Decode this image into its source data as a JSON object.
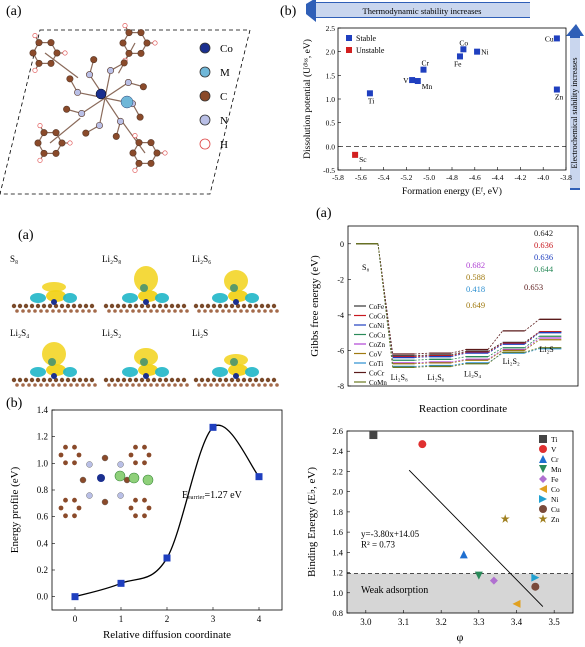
{
  "panel_labels": {
    "tl": "(a)",
    "tr": "(b)",
    "ml": "(a)",
    "mr": "(a)",
    "bl": "(b)"
  },
  "structure": {
    "legend": [
      {
        "label": "Co",
        "color": "#1a2f8f"
      },
      {
        "label": "M",
        "color": "#6fb7d8"
      },
      {
        "label": "C",
        "color": "#8a4a2a"
      },
      {
        "label": "N",
        "color": "#b9bfe6"
      },
      {
        "label": "H",
        "color": "#ffffff"
      }
    ]
  },
  "charge_density": {
    "labels": [
      "S₈",
      "Li₂S₈",
      "Li₂S₆",
      "Li₂S₄",
      "Li₂S₂",
      "Li₂S"
    ]
  },
  "chart_data": [
    {
      "id": "stability",
      "type": "scatter",
      "xlabel": "Formation energy (Eᶠ, eV)",
      "ylabel": "Dissolution potential (Uᵈⁱˢˢ, eV)",
      "xlim": [
        -5.8,
        -3.8
      ],
      "ylim": [
        -0.5,
        2.5
      ],
      "xticks": [
        "-5.8",
        "-5.6",
        "-5.4",
        "-5.2",
        "-5.0",
        "-4.8",
        "-4.6",
        "-4.4",
        "-4.2",
        "-4.0",
        "-3.8"
      ],
      "yticks": [
        "-0.5",
        "0.0",
        "0.5",
        "1.0",
        "1.5",
        "2.0",
        "2.5"
      ],
      "banner_h": "Thermodynamic stability increases",
      "banner_v": "Electrochemical stability increases",
      "legend": [
        {
          "name": "Stable",
          "color": "#1f3fbf"
        },
        {
          "name": "Unstable",
          "color": "#d21f1f"
        }
      ],
      "points": [
        {
          "label": "Ti",
          "x": -5.52,
          "y": 1.12,
          "cls": "Stable"
        },
        {
          "label": "V",
          "x": -5.15,
          "y": 1.4,
          "cls": "Stable"
        },
        {
          "label": "Mn",
          "x": -5.1,
          "y": 1.38,
          "cls": "Stable"
        },
        {
          "label": "Cr",
          "x": -5.05,
          "y": 1.62,
          "cls": "Stable"
        },
        {
          "label": "Fe",
          "x": -4.73,
          "y": 1.9,
          "cls": "Stable"
        },
        {
          "label": "Co",
          "x": -4.7,
          "y": 2.05,
          "cls": "Stable"
        },
        {
          "label": "Ni",
          "x": -4.58,
          "y": 2.0,
          "cls": "Stable"
        },
        {
          "label": "Cu",
          "x": -3.88,
          "y": 2.28,
          "cls": "Stable"
        },
        {
          "label": "Zn",
          "x": -3.88,
          "y": 1.2,
          "cls": "Stable"
        },
        {
          "label": "Sc",
          "x": -5.65,
          "y": -0.18,
          "cls": "Unstable"
        }
      ]
    },
    {
      "id": "gibbs",
      "type": "line",
      "xlabel": "Reaction coordinate",
      "ylabel": "Gibbs free energy (eV)",
      "ylim": [
        -8,
        1
      ],
      "yticks": [
        "0",
        "-2",
        "-4",
        "-6",
        "-8"
      ],
      "steps": [
        "S₈",
        "Li₂S₈",
        "Li₂S₆",
        "Li₂S₄",
        "Li₂S₂",
        "Li₂S"
      ],
      "series": [
        {
          "name": "CoFe",
          "color": "#333333",
          "values": [
            0,
            -6.3,
            -6.25,
            -6.05,
            -5.55,
            -4.95
          ]
        },
        {
          "name": "CoCo",
          "color": "#c8191f",
          "values": [
            0,
            -6.35,
            -6.3,
            -6.1,
            -5.6,
            -4.95
          ]
        },
        {
          "name": "CoNi",
          "color": "#1f3fbf",
          "values": [
            0,
            -6.4,
            -6.35,
            -6.15,
            -5.65,
            -5.0
          ]
        },
        {
          "name": "CoCu",
          "color": "#2a8a5a",
          "values": [
            0,
            -6.55,
            -6.5,
            -6.35,
            -5.85,
            -5.2
          ]
        },
        {
          "name": "CoZn",
          "color": "#b044d4",
          "values": [
            0,
            -6.7,
            -6.65,
            -6.5,
            -5.95,
            -5.3
          ]
        },
        {
          "name": "CoV",
          "color": "#a07a10",
          "values": [
            0,
            -6.75,
            -6.7,
            -6.55,
            -6.0,
            -5.4
          ]
        },
        {
          "name": "CoTi",
          "color": "#2b8fd0",
          "values": [
            0,
            -6.9,
            -6.85,
            -6.7,
            -6.15,
            -5.9
          ]
        },
        {
          "name": "CoCr",
          "color": "#5a1a1a",
          "values": [
            0,
            -6.2,
            -6.15,
            -5.95,
            -4.9,
            -4.25
          ]
        },
        {
          "name": "CoMn",
          "color": "#6a7a20",
          "values": [
            0,
            -6.95,
            -6.9,
            -6.75,
            -6.1,
            -5.85
          ]
        }
      ],
      "annotations": [
        {
          "text": "0.642",
          "color": "#222222"
        },
        {
          "text": "0.636",
          "color": "#c8191f"
        },
        {
          "text": "0.636",
          "color": "#1f3fbf"
        },
        {
          "text": "0.644",
          "color": "#2a8a5a"
        },
        {
          "text": "0.682",
          "color": "#b044d4"
        },
        {
          "text": "0.588",
          "color": "#a07a10"
        },
        {
          "text": "0.418",
          "color": "#2b8fd0"
        },
        {
          "text": "0.649",
          "color": "#a07a10"
        },
        {
          "text": "0.653",
          "color": "#5a1a1a"
        }
      ]
    },
    {
      "id": "diffusion",
      "type": "line",
      "xlabel": "Relative diffusion coordinate",
      "ylabel": "Energy profile (eV)",
      "xlim": [
        -0.5,
        4.5
      ],
      "ylim": [
        -0.1,
        1.4
      ],
      "xticks": [
        "0",
        "1",
        "2",
        "3",
        "4"
      ],
      "yticks": [
        "0.0",
        "0.2",
        "0.4",
        "0.6",
        "0.8",
        "1.0",
        "1.2",
        "1.4"
      ],
      "x": [
        0,
        1,
        2,
        3,
        4
      ],
      "values": [
        0.0,
        0.1,
        0.29,
        1.27,
        0.9
      ],
      "annotation": "Eₑₐᵣᵣᵢₑᵣ=1.27 eV"
    },
    {
      "id": "binding",
      "type": "scatter",
      "xlabel": "φ",
      "ylabel": "Binding Energy (E♭, eV)",
      "xlim": [
        2.95,
        3.55
      ],
      "ylim": [
        0.8,
        2.6
      ],
      "xticks": [
        "3.0",
        "3.1",
        "3.2",
        "3.3",
        "3.4",
        "3.5"
      ],
      "yticks": [
        "0.8",
        "1.0",
        "1.2",
        "1.4",
        "1.6",
        "1.8",
        "2.0",
        "2.2",
        "2.4",
        "2.6"
      ],
      "fit_text": "y=-3.80x+14.05",
      "r2_text": "R² = 0.73",
      "region_text": "Weak adsorption",
      "threshold": 1.19,
      "fit": {
        "slope": -3.8,
        "intercept": 14.05
      },
      "points": [
        {
          "name": "Ti",
          "x": 3.02,
          "y": 2.56,
          "color": "#444444",
          "shape": "square"
        },
        {
          "name": "V",
          "x": 3.15,
          "y": 2.47,
          "color": "#e03030",
          "shape": "circle"
        },
        {
          "name": "Cr",
          "x": 3.26,
          "y": 1.38,
          "color": "#1f6fd0",
          "shape": "triangle-up"
        },
        {
          "name": "Mn",
          "x": 3.3,
          "y": 1.17,
          "color": "#2a8a5a",
          "shape": "triangle-down"
        },
        {
          "name": "Fe",
          "x": 3.34,
          "y": 1.12,
          "color": "#b070d0",
          "shape": "diamond"
        },
        {
          "name": "Co",
          "x": 3.4,
          "y": 0.89,
          "color": "#e0a020",
          "shape": "triangle-left"
        },
        {
          "name": "Ni",
          "x": 3.45,
          "y": 1.15,
          "color": "#20a0d0",
          "shape": "triangle-right"
        },
        {
          "name": "Cu",
          "x": 3.45,
          "y": 1.06,
          "color": "#7a4a3a",
          "shape": "circle"
        },
        {
          "name": "Zn",
          "x": 3.37,
          "y": 1.73,
          "color": "#a08020",
          "shape": "star"
        }
      ]
    }
  ]
}
